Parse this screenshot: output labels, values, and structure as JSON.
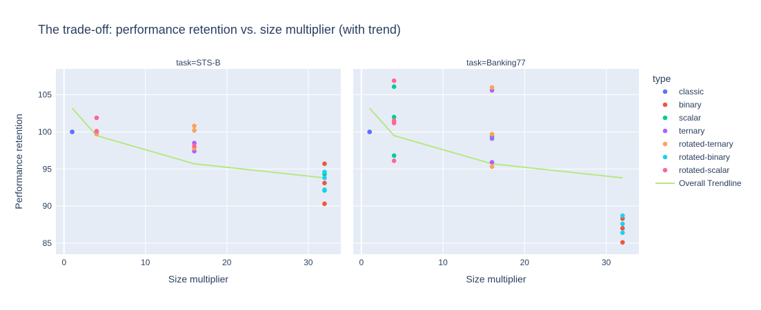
{
  "chart_data": {
    "type": "scatter",
    "title": "The trade-off: performance retention vs. size multiplier (with trend)",
    "xlabel": "Size multiplier",
    "ylabel": "Performance retention",
    "legend_title": "type",
    "legend_placement": "right",
    "grid": true,
    "xlim": [
      -1,
      34
    ],
    "ylim": [
      83.5,
      108.5
    ],
    "x_ticks": [
      0,
      10,
      20,
      30
    ],
    "y_ticks": [
      85,
      90,
      95,
      100,
      105
    ],
    "colors": {
      "classic": "#636efa",
      "binary": "#EF553B",
      "scalar": "#00cc96",
      "ternary": "#ab63fa",
      "rotated-ternary": "#FFA15A",
      "rotated-binary": "#19d3f3",
      "rotated-scalar": "#FF6692",
      "Overall Trendline": "#B6E880",
      "plot_bg": "#E5ECF6"
    },
    "series_order": [
      "classic",
      "binary",
      "scalar",
      "ternary",
      "rotated-ternary",
      "rotated-binary",
      "rotated-scalar"
    ],
    "trend_name": "Overall Trendline",
    "panels": [
      {
        "label": "task=STS-B",
        "points": {
          "classic": [
            [
              1,
              100.0
            ],
            [
              1,
              100.0
            ]
          ],
          "binary": [
            [
              32,
              95.7
            ],
            [
              32,
              93.1
            ],
            [
              32,
              90.3
            ]
          ],
          "scalar": [
            [
              4,
              100.0
            ],
            [
              32,
              92.1
            ],
            [
              32,
              94.3
            ]
          ],
          "ternary": [
            [
              16,
              98.5
            ],
            [
              16,
              97.4
            ]
          ],
          "rotated-ternary": [
            [
              4,
              99.7
            ],
            [
              16,
              100.8
            ],
            [
              16,
              100.2
            ],
            [
              16,
              97.8
            ]
          ],
          "rotated-binary": [
            [
              32,
              94.6
            ],
            [
              32,
              93.8
            ],
            [
              32,
              92.2
            ]
          ],
          "rotated-scalar": [
            [
              4,
              101.9
            ],
            [
              4,
              100.1
            ],
            [
              16,
              98.1
            ]
          ]
        },
        "trend": [
          [
            1,
            103.2
          ],
          [
            4,
            99.5
          ],
          [
            16,
            95.7
          ],
          [
            32,
            93.8
          ]
        ]
      },
      {
        "label": "task=Banking77",
        "points": {
          "classic": [
            [
              1,
              100.0
            ],
            [
              1,
              100.0
            ]
          ],
          "binary": [
            [
              32,
              88.3
            ],
            [
              32,
              87.0
            ],
            [
              32,
              85.1
            ]
          ],
          "scalar": [
            [
              4,
              106.1
            ],
            [
              4,
              102.0
            ],
            [
              4,
              96.8
            ],
            [
              16,
              99.4
            ]
          ],
          "ternary": [
            [
              16,
              105.6
            ],
            [
              16,
              99.1
            ],
            [
              16,
              95.9
            ]
          ],
          "rotated-ternary": [
            [
              16,
              106.0
            ],
            [
              16,
              99.7
            ],
            [
              16,
              95.3
            ]
          ],
          "rotated-binary": [
            [
              32,
              88.7
            ],
            [
              32,
              87.6
            ],
            [
              32,
              86.4
            ]
          ],
          "rotated-scalar": [
            [
              4,
              106.9
            ],
            [
              4,
              101.5
            ],
            [
              4,
              101.2
            ],
            [
              4,
              96.1
            ]
          ]
        },
        "trend": [
          [
            1,
            103.2
          ],
          [
            4,
            99.5
          ],
          [
            16,
            95.7
          ],
          [
            32,
            93.8
          ]
        ]
      }
    ]
  }
}
